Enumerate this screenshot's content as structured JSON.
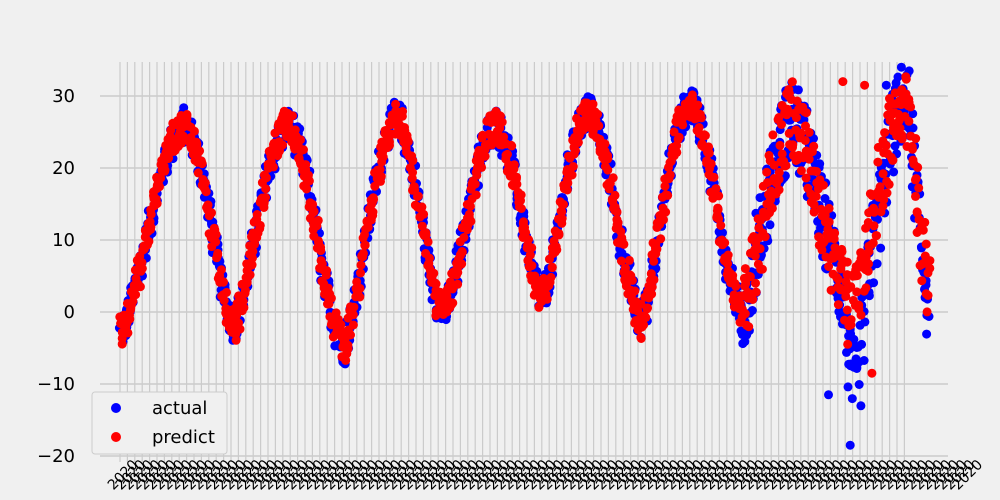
{
  "chart_data": {
    "type": "scatter",
    "title": "",
    "xlabel": "",
    "ylabel": "",
    "ylim": [
      -20,
      34
    ],
    "yticks": [
      -20,
      -10,
      0,
      10,
      20,
      30
    ],
    "x_count": 110,
    "x_tick_note": "dense overlapping rotated date labels (illegible)",
    "grid": true,
    "legend_position": "lower-left",
    "colors": {
      "actual": "#0000ff",
      "predict": "#ff0000",
      "grid": "#cbcbcb",
      "background": "#f0f0f0"
    },
    "series": [
      {
        "name": "actual",
        "values": [
          -3,
          -1,
          3,
          7,
          12,
          16,
          20,
          23,
          25,
          26,
          24,
          21,
          16,
          10,
          4,
          0,
          -2,
          2,
          7,
          12,
          17,
          21,
          24,
          26,
          25,
          22,
          18,
          12,
          6,
          1,
          -3,
          -5,
          -1,
          4,
          10,
          16,
          21,
          25,
          27,
          26,
          22,
          17,
          11,
          5,
          1,
          0,
          3,
          8,
          13,
          18,
          22,
          25,
          26,
          24,
          21,
          16,
          11,
          6,
          2,
          3,
          8,
          14,
          19,
          24,
          27,
          28,
          26,
          22,
          17,
          11,
          6,
          2,
          -2,
          2,
          8,
          14,
          20,
          25,
          28,
          29,
          27,
          23,
          18,
          12,
          6,
          2,
          0,
          3,
          8,
          13,
          18,
          22,
          25,
          27,
          25,
          22,
          18,
          14,
          10,
          6,
          3,
          -8,
          -11,
          0,
          8,
          14,
          20,
          26,
          29,
          28,
          18,
          8,
          0
        ],
        "extremes": [
          -11.5,
          -18.5,
          31.5
        ]
      },
      {
        "name": "predict",
        "values": [
          -3,
          -1,
          3,
          7,
          12,
          16,
          20,
          23,
          25,
          26,
          24,
          21,
          16,
          10,
          4,
          0,
          -2,
          2,
          7,
          12,
          17,
          21,
          24,
          26,
          25,
          22,
          18,
          12,
          6,
          1,
          -3,
          -5,
          -1,
          4,
          10,
          16,
          21,
          25,
          27,
          26,
          22,
          17,
          11,
          5,
          1,
          0,
          3,
          8,
          13,
          18,
          22,
          25,
          26,
          24,
          21,
          16,
          11,
          6,
          2,
          3,
          8,
          14,
          19,
          24,
          27,
          28,
          26,
          22,
          17,
          11,
          6,
          2,
          -2,
          2,
          8,
          14,
          20,
          25,
          28,
          29,
          27,
          23,
          18,
          12,
          6,
          2,
          0,
          3,
          8,
          13,
          18,
          22,
          25,
          27,
          25,
          22,
          18,
          14,
          10,
          6,
          3,
          0,
          2,
          6,
          12,
          18,
          22,
          26,
          28,
          27,
          20,
          10,
          2
        ],
        "extremes": [
          32,
          31.5,
          -8.5
        ]
      }
    ]
  },
  "legend": {
    "items": [
      {
        "label": "actual",
        "color": "#0000ff"
      },
      {
        "label": "predict",
        "color": "#ff0000"
      }
    ]
  }
}
